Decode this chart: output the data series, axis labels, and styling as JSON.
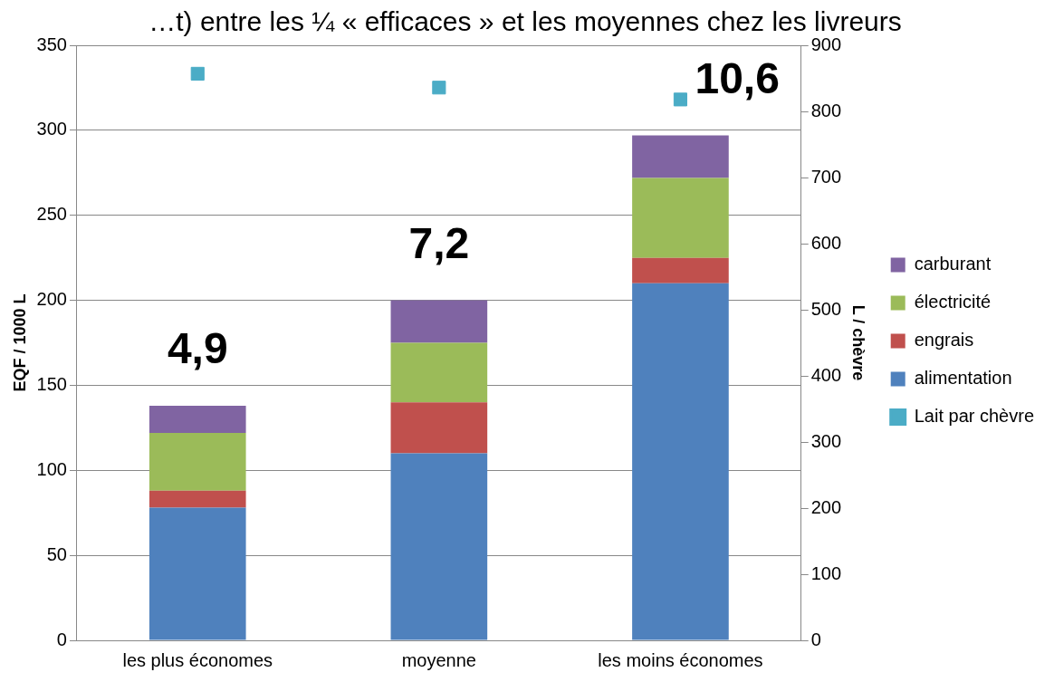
{
  "chart_data": {
    "type": "bar",
    "title": "…t) entre les ¼ « efficaces » et les moyennes chez les livreurs",
    "categories": [
      "les plus économes",
      "moyenne",
      "les moins économes"
    ],
    "stacked": true,
    "ylabel": "EQF / 1000 L",
    "y2label": "L / chèvre",
    "ylim": [
      0,
      350
    ],
    "yticks": [
      0,
      50,
      100,
      150,
      200,
      250,
      300,
      350
    ],
    "y2lim": [
      0,
      900
    ],
    "y2ticks": [
      0,
      100,
      200,
      300,
      400,
      500,
      600,
      700,
      800,
      900
    ],
    "grid": "y",
    "legend": "right",
    "series": [
      {
        "name": "alimentation",
        "color": "#4f81bd",
        "values": [
          78,
          110,
          210
        ]
      },
      {
        "name": "engrais",
        "color": "#c0504d",
        "values": [
          10,
          30,
          15
        ]
      },
      {
        "name": "électricité",
        "color": "#9bbb59",
        "values": [
          34,
          35,
          47
        ]
      },
      {
        "name": "carburant",
        "color": "#8064a2",
        "values": [
          16,
          25,
          25
        ]
      },
      {
        "name": "Lait par chèvre",
        "color": "#4bacc6",
        "type": "scatter",
        "axis": "y2",
        "marker": "square",
        "values": [
          857,
          836,
          818
        ]
      }
    ],
    "annotations": [
      "4,9",
      "7,2",
      "10,6"
    ]
  }
}
